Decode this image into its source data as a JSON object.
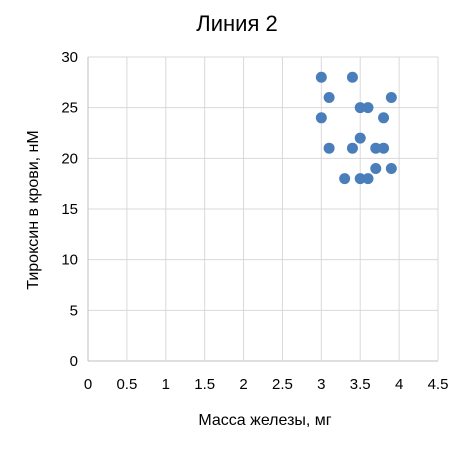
{
  "chart_data": {
    "type": "scatter",
    "title": "Линия 2",
    "xlabel": "Масса железы, мг",
    "ylabel": "Тироксин в крови, нМ",
    "xlim": [
      0,
      4.5
    ],
    "ylim": [
      0,
      30
    ],
    "xticks": [
      "0",
      "0.5",
      "1",
      "1.5",
      "2",
      "2.5",
      "3",
      "3.5",
      "4",
      "4.5"
    ],
    "yticks": [
      "0",
      "5",
      "10",
      "15",
      "20",
      "25",
      "30"
    ],
    "grid": true,
    "legend": "none",
    "color": "#4a7ebb",
    "points": [
      {
        "x": 3.0,
        "y": 28
      },
      {
        "x": 3.4,
        "y": 28
      },
      {
        "x": 3.1,
        "y": 26
      },
      {
        "x": 3.9,
        "y": 26
      },
      {
        "x": 3.5,
        "y": 25
      },
      {
        "x": 3.6,
        "y": 25
      },
      {
        "x": 3.0,
        "y": 24
      },
      {
        "x": 3.8,
        "y": 24
      },
      {
        "x": 3.5,
        "y": 22
      },
      {
        "x": 3.1,
        "y": 21
      },
      {
        "x": 3.4,
        "y": 21
      },
      {
        "x": 3.7,
        "y": 21
      },
      {
        "x": 3.8,
        "y": 21
      },
      {
        "x": 3.7,
        "y": 19
      },
      {
        "x": 3.9,
        "y": 19
      },
      {
        "x": 3.3,
        "y": 18
      },
      {
        "x": 3.5,
        "y": 18
      },
      {
        "x": 3.6,
        "y": 18
      }
    ]
  }
}
